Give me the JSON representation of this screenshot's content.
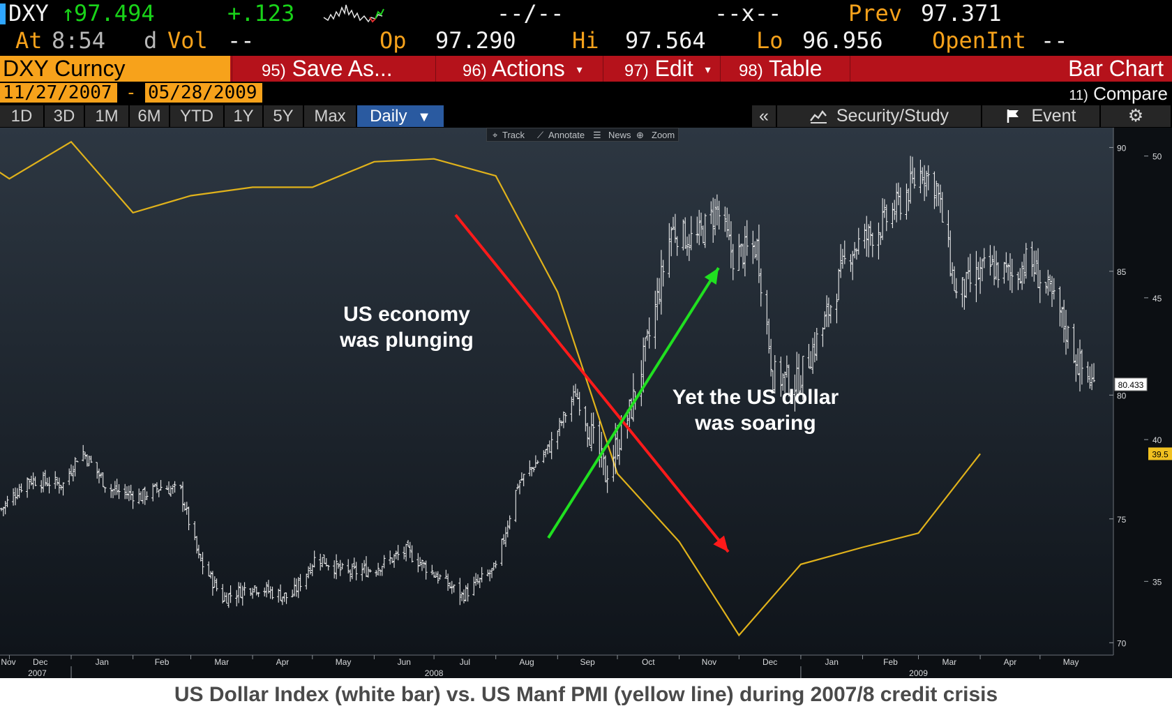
{
  "quote": {
    "ticker": "DXY",
    "arrow": "↑",
    "last": "97.494",
    "change": "+.123",
    "bidask": "--/--",
    "size": "--x--",
    "prev_label": "Prev",
    "prev": "97.371",
    "at_label": "At",
    "time": "8:54",
    "d_label": "d",
    "vol_label": "Vol",
    "vol": "--",
    "open_label": "Op",
    "open": "97.290",
    "hi_label": "Hi",
    "hi": "97.564",
    "lo_label": "Lo",
    "lo": "96.956",
    "openint_label": "OpenInt",
    "openint": "--"
  },
  "menu": {
    "security": "DXY Curncy",
    "save_num": "95)",
    "save_label": "Save As...",
    "actions_num": "96)",
    "actions_label": "Actions",
    "edit_num": "97)",
    "edit_label": "Edit",
    "table_num": "98)",
    "table_label": "Table",
    "chart_type": "Bar Chart"
  },
  "dates": {
    "start": "11/27/2007",
    "separator": "-",
    "end": "05/28/2009",
    "compare_num": "11)",
    "compare_label": "Compare"
  },
  "ranges": [
    "1D",
    "3D",
    "1M",
    "6M",
    "YTD",
    "1Y",
    "5Y",
    "Max"
  ],
  "period": "Daily",
  "tools": {
    "collapse": "«",
    "security_study": "Security/Study",
    "event": "Event",
    "settings_icon": "gear-icon"
  },
  "subtoolbar": {
    "track": "Track",
    "annotate": "Annotate",
    "news": "News",
    "zoom": "Zoom"
  },
  "chart_data": {
    "type": "line",
    "caption": "US Dollar Index (white bar) vs. US Manf PMI (yellow line) during 2007/8 credit crisis",
    "annotations": [
      "US economy was plunging",
      "Yet the US dollar was soaring"
    ],
    "annotation_lines": [
      [
        "US economy",
        "was plunging"
      ],
      [
        "Yet the US dollar",
        "was soaring"
      ]
    ],
    "x_months": [
      "Nov",
      "Dec",
      "Jan",
      "Feb",
      "Mar",
      "Apr",
      "May",
      "Jun",
      "Jul",
      "Aug",
      "Sep",
      "Oct",
      "Nov",
      "Dec",
      "Jan",
      "Feb",
      "Mar",
      "Apr",
      "May"
    ],
    "x_years": [
      "2007",
      "2008",
      "2009"
    ],
    "left_axis": {
      "ticks": [
        90,
        85,
        80,
        75,
        70
      ],
      "range": [
        69.5,
        90.8
      ],
      "last_label": "80.433"
    },
    "right_axis": {
      "ticks": [
        50,
        45,
        40,
        35
      ],
      "range": [
        32.4,
        51.0
      ],
      "last_label": "39.5"
    },
    "series": [
      {
        "name": "US Dollar Index",
        "style": "bar",
        "color": "#ffffff",
        "anchors": [
          [
            "2007-11-27",
            75.4
          ],
          [
            "2007-12-10",
            76.6
          ],
          [
            "2007-12-28",
            76.4
          ],
          [
            "2008-01-06",
            77.8
          ],
          [
            "2008-01-20",
            76.2
          ],
          [
            "2008-02-05",
            75.9
          ],
          [
            "2008-02-15",
            76.3
          ],
          [
            "2008-02-25",
            76.1
          ],
          [
            "2008-03-05",
            73.4
          ],
          [
            "2008-03-17",
            71.8
          ],
          [
            "2008-04-01",
            72.3
          ],
          [
            "2008-04-20",
            71.8
          ],
          [
            "2008-05-03",
            73.5
          ],
          [
            "2008-05-18",
            72.8
          ],
          [
            "2008-06-01",
            73.0
          ],
          [
            "2008-06-17",
            73.7
          ],
          [
            "2008-07-01",
            72.8
          ],
          [
            "2008-07-15",
            71.9
          ],
          [
            "2008-08-01",
            73.0
          ],
          [
            "2008-08-12",
            76.4
          ],
          [
            "2008-08-28",
            77.9
          ],
          [
            "2008-09-10",
            80.1
          ],
          [
            "2008-09-25",
            76.8
          ],
          [
            "2008-10-08",
            79.5
          ],
          [
            "2008-10-18",
            82.7
          ],
          [
            "2008-10-28",
            86.7
          ],
          [
            "2008-11-09",
            86.2
          ],
          [
            "2008-11-20",
            87.5
          ],
          [
            "2008-11-28",
            85.6
          ],
          [
            "2008-12-10",
            86.0
          ],
          [
            "2008-12-18",
            80.8
          ],
          [
            "2008-12-30",
            80.5
          ],
          [
            "2009-01-12",
            82.7
          ],
          [
            "2009-01-25",
            85.8
          ],
          [
            "2009-02-10",
            86.8
          ],
          [
            "2009-02-20",
            87.8
          ],
          [
            "2009-03-03",
            89.1
          ],
          [
            "2009-03-10",
            88.4
          ],
          [
            "2009-03-20",
            84.0
          ],
          [
            "2009-04-05",
            85.2
          ],
          [
            "2009-04-18",
            84.8
          ],
          [
            "2009-04-25",
            85.5
          ],
          [
            "2009-05-10",
            83.5
          ],
          [
            "2009-05-20",
            81.3
          ],
          [
            "2009-05-28",
            80.4
          ]
        ]
      },
      {
        "name": "US Manf PMI",
        "style": "line",
        "color": "#e0b21b",
        "points": [
          [
            "2007-11-01",
            50.6
          ],
          [
            "2007-12-01",
            49.2
          ],
          [
            "2008-01-01",
            50.5
          ],
          [
            "2008-02-01",
            48.0
          ],
          [
            "2008-03-01",
            48.6
          ],
          [
            "2008-04-01",
            48.9
          ],
          [
            "2008-05-01",
            48.9
          ],
          [
            "2008-06-01",
            49.8
          ],
          [
            "2008-07-01",
            49.9
          ],
          [
            "2008-08-01",
            49.3
          ],
          [
            "2008-09-01",
            45.2
          ],
          [
            "2008-10-01",
            38.8
          ],
          [
            "2008-11-01",
            36.4
          ],
          [
            "2008-12-01",
            33.1
          ],
          [
            "2009-01-01",
            35.6
          ],
          [
            "2009-02-01",
            36.2
          ],
          [
            "2009-03-01",
            36.7
          ],
          [
            "2009-04-01",
            39.5
          ]
        ]
      }
    ]
  }
}
